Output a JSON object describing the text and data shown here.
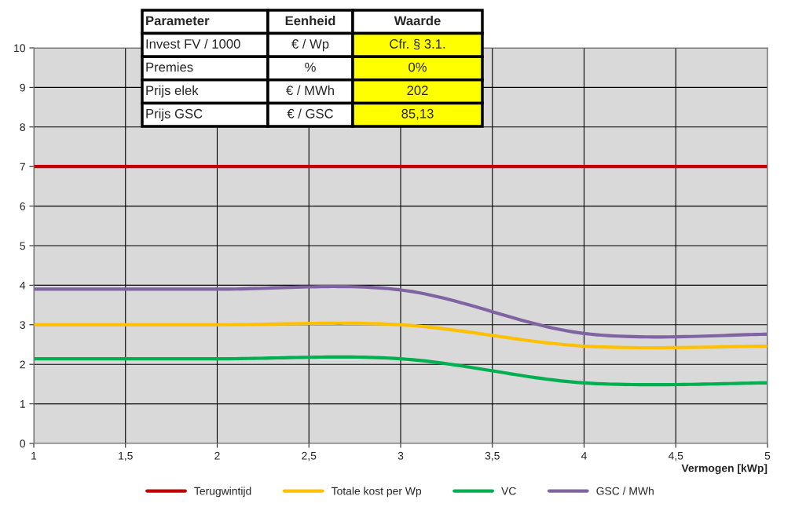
{
  "chart_data": {
    "type": "line",
    "x": [
      1,
      2,
      3,
      4,
      5
    ],
    "series": [
      {
        "name": "Terugwintijd",
        "color": "#c00000",
        "values": [
          7,
          7,
          7,
          7,
          7
        ]
      },
      {
        "name": "Totale kost per Wp",
        "color": "#ffc000",
        "values": [
          3.0,
          3.0,
          3.0,
          2.46,
          2.46
        ]
      },
      {
        "name": "VC",
        "color": "#00b050",
        "values": [
          2.14,
          2.14,
          2.14,
          1.53,
          1.53
        ]
      },
      {
        "name": "GSC / MWh",
        "color": "#8064a2",
        "values": [
          3.9,
          3.9,
          3.88,
          2.78,
          2.76
        ]
      }
    ],
    "xlabel": "Vermogen [kWp]",
    "xlim": [
      1,
      5
    ],
    "xticks": [
      1,
      {
        "value": 1.5,
        "label": "1,5"
      },
      2,
      {
        "value": 2.5,
        "label": "2,5"
      },
      3,
      {
        "value": 3.5,
        "label": "3,5"
      },
      4,
      {
        "value": 4.5,
        "label": "4,5"
      },
      5
    ],
    "ylim": [
      0,
      10
    ],
    "yticks": [
      0,
      1,
      2,
      3,
      4,
      5,
      6,
      7,
      8,
      9,
      10
    ],
    "grid": true,
    "legend": "bottom",
    "marker": "none",
    "line_style": "solid",
    "annotations": [
      "Parameter",
      "Eenheid",
      "Waarde",
      "Invest FV / 1000",
      "€ / Wp",
      "Cfr. § 3.1.",
      "Premies",
      "%",
      "0%",
      "Prijs elek",
      "€ / MWh",
      "202",
      "Prijs GSC",
      "€ / GSC",
      "85,13"
    ]
  }
}
